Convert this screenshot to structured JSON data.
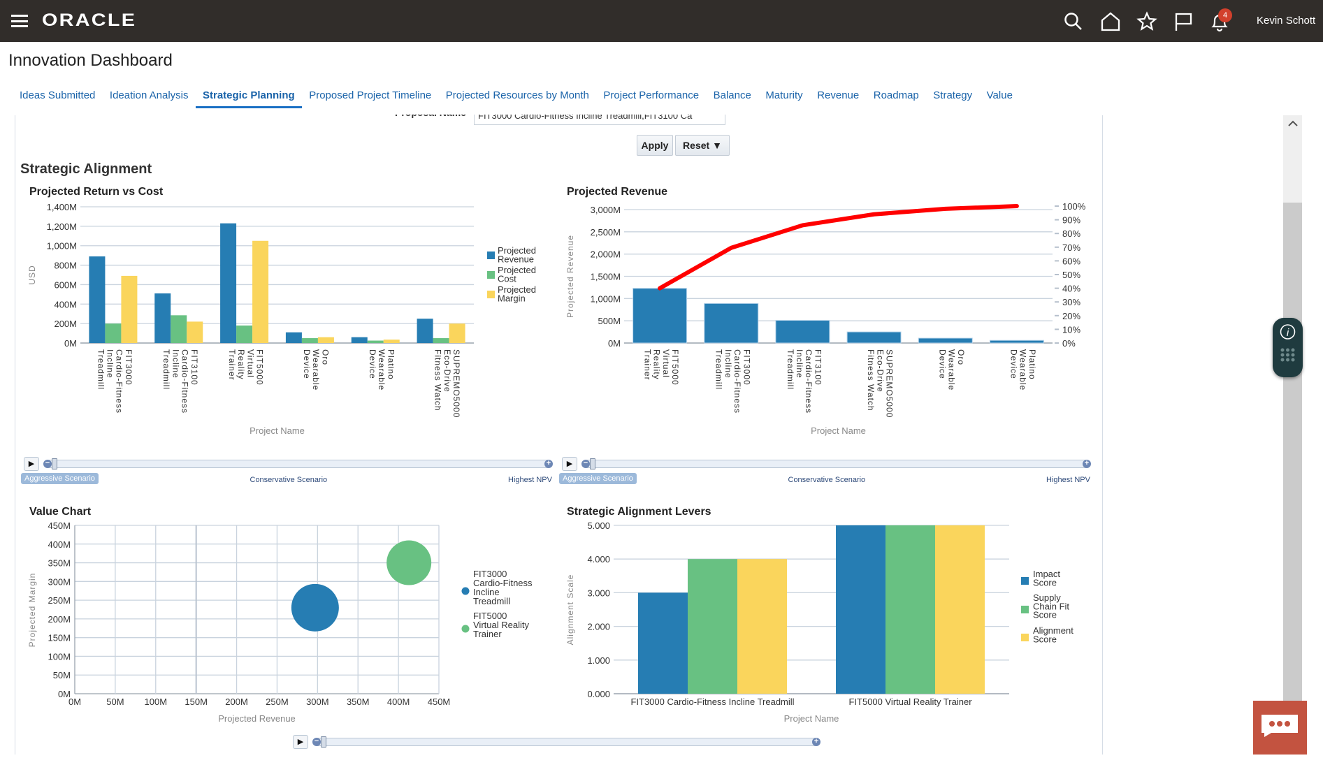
{
  "header": {
    "logo": "ORACLE",
    "user": "Kevin Schott",
    "notification_count": "4",
    "icons": [
      "hamburger-menu-icon",
      "search-icon",
      "home-icon",
      "star-icon",
      "flag-icon",
      "bell-icon"
    ]
  },
  "page": {
    "title": "Innovation Dashboard"
  },
  "tabs": [
    {
      "label": "Ideas Submitted"
    },
    {
      "label": "Ideation Analysis"
    },
    {
      "label": "Strategic Planning",
      "active": true
    },
    {
      "label": "Proposed Project Timeline"
    },
    {
      "label": "Projected Resources by Month"
    },
    {
      "label": "Project Performance"
    },
    {
      "label": "Balance"
    },
    {
      "label": "Maturity"
    },
    {
      "label": "Revenue"
    },
    {
      "label": "Roadmap"
    },
    {
      "label": "Strategy"
    },
    {
      "label": "Value"
    }
  ],
  "filter": {
    "label": "Proposal Name",
    "value": "FIT3000 Cardio-Fitness Incline Treadmill,FIT3100 Ca",
    "apply": "Apply",
    "reset": "Reset ▼"
  },
  "section": {
    "title": "Strategic Alignment"
  },
  "sliders": {
    "labels": [
      "Aggressive Scenario",
      "Conservative Scenario",
      "Highest NPV"
    ],
    "selected": "Aggressive Scenario"
  },
  "colors": {
    "blue": "#267db3",
    "green": "#68c182",
    "yellow": "#fad55c",
    "red": "#ff0000",
    "topbar": "#312d2a"
  },
  "chart_data": [
    {
      "id": "return-vs-cost",
      "type": "bar",
      "title": "Projected Return vs Cost",
      "xlabel": "Project Name",
      "ylabel": "USD",
      "ylim": [
        0,
        1400
      ],
      "yticks": [
        "0M",
        "200M",
        "400M",
        "600M",
        "800M",
        "1,000M",
        "1,200M",
        "1,400M"
      ],
      "legend": "right",
      "grid": true,
      "categories": [
        "FIT3000\nCardio-Fitness\nIncline\nTreadmill",
        "FIT3100\nCardio-Fitness\nIncline\nTreadmill",
        "FIT5000\nVirtual\nReality\nTrainer",
        "Oro\nWearable\nDevice",
        "Platino\nWearable\nDevice",
        "SUPREMO5000\nEco-Drive\nFitness Watch"
      ],
      "series": [
        {
          "name": "Projected Revenue",
          "color": "#267db3",
          "values": [
            890,
            510,
            1230,
            110,
            60,
            250
          ]
        },
        {
          "name": "Projected Cost",
          "color": "#68c182",
          "values": [
            200,
            285,
            180,
            50,
            25,
            50
          ]
        },
        {
          "name": "Projected Margin",
          "color": "#fad55c",
          "values": [
            690,
            220,
            1050,
            60,
            35,
            200
          ]
        }
      ]
    },
    {
      "id": "projected-revenue",
      "type": "bar",
      "title": "Projected Revenue",
      "xlabel": "Project Name",
      "ylabel": "Projected Revenue",
      "ylim": [
        0,
        3000
      ],
      "y2lim": [
        0,
        100
      ],
      "yticks": [
        "0M",
        "500M",
        "1,000M",
        "1,500M",
        "2,000M",
        "2,500M",
        "3,000M"
      ],
      "y2ticks": [
        "0%",
        "10%",
        "20%",
        "30%",
        "40%",
        "50%",
        "60%",
        "70%",
        "80%",
        "90%",
        "100%"
      ],
      "grid": true,
      "categories": [
        "FIT5000\nVirtual\nReality\nTrainer",
        "FIT3000\nCardio-Fitness\nIncline\nTreadmill",
        "FIT3100\nCardio-Fitness\nIncline\nTreadmill",
        "SUPREMO5000\nEco-Drive\nFitness Watch",
        "Oro\nWearable\nDevice",
        "Platino\nWearable\nDevice"
      ],
      "values": [
        1230,
        890,
        510,
        250,
        110,
        60
      ],
      "cumulative_percent": [
        40,
        69.5,
        86,
        94,
        98,
        100
      ]
    },
    {
      "id": "value-chart",
      "type": "scatter",
      "title": "Value Chart",
      "xlabel": "Projected Revenue",
      "ylabel": "Projected Margin",
      "xlim": [
        0,
        450
      ],
      "ylim": [
        0,
        450
      ],
      "xticks": [
        "0M",
        "50M",
        "100M",
        "150M",
        "200M",
        "250M",
        "300M",
        "350M",
        "400M",
        "450M"
      ],
      "yticks": [
        "0M",
        "50M",
        "100M",
        "150M",
        "200M",
        "250M",
        "300M",
        "350M",
        "400M",
        "450M"
      ],
      "legend": "right",
      "grid": true,
      "series": [
        {
          "name": "FIT3000\nCardio-Fitness\nIncline\nTreadmill",
          "color": "#267db3",
          "x": 297,
          "y": 230
        },
        {
          "name": "FIT5000\nVirtual Reality\nTrainer",
          "color": "#68c182",
          "x": 413,
          "y": 350
        }
      ]
    },
    {
      "id": "alignment-levers",
      "type": "bar",
      "title": "Strategic Alignment Levers",
      "xlabel": "Project Name",
      "ylabel": "Alignment Scale",
      "ylim": [
        0,
        5
      ],
      "yticks": [
        "0.000",
        "1.000",
        "2.000",
        "3.000",
        "4.000",
        "5.000"
      ],
      "legend": "right",
      "grid": true,
      "categories": [
        "FIT3000 Cardio-Fitness Incline Treadmill",
        "FIT5000 Virtual Reality Trainer"
      ],
      "series": [
        {
          "name": "Impact\nScore",
          "color": "#267db3",
          "values": [
            3,
            5
          ]
        },
        {
          "name": "Supply\nChain Fit\nScore",
          "color": "#68c182",
          "values": [
            4,
            5
          ]
        },
        {
          "name": "Alignment\nScore",
          "color": "#fad55c",
          "values": [
            4,
            5
          ]
        }
      ]
    }
  ]
}
